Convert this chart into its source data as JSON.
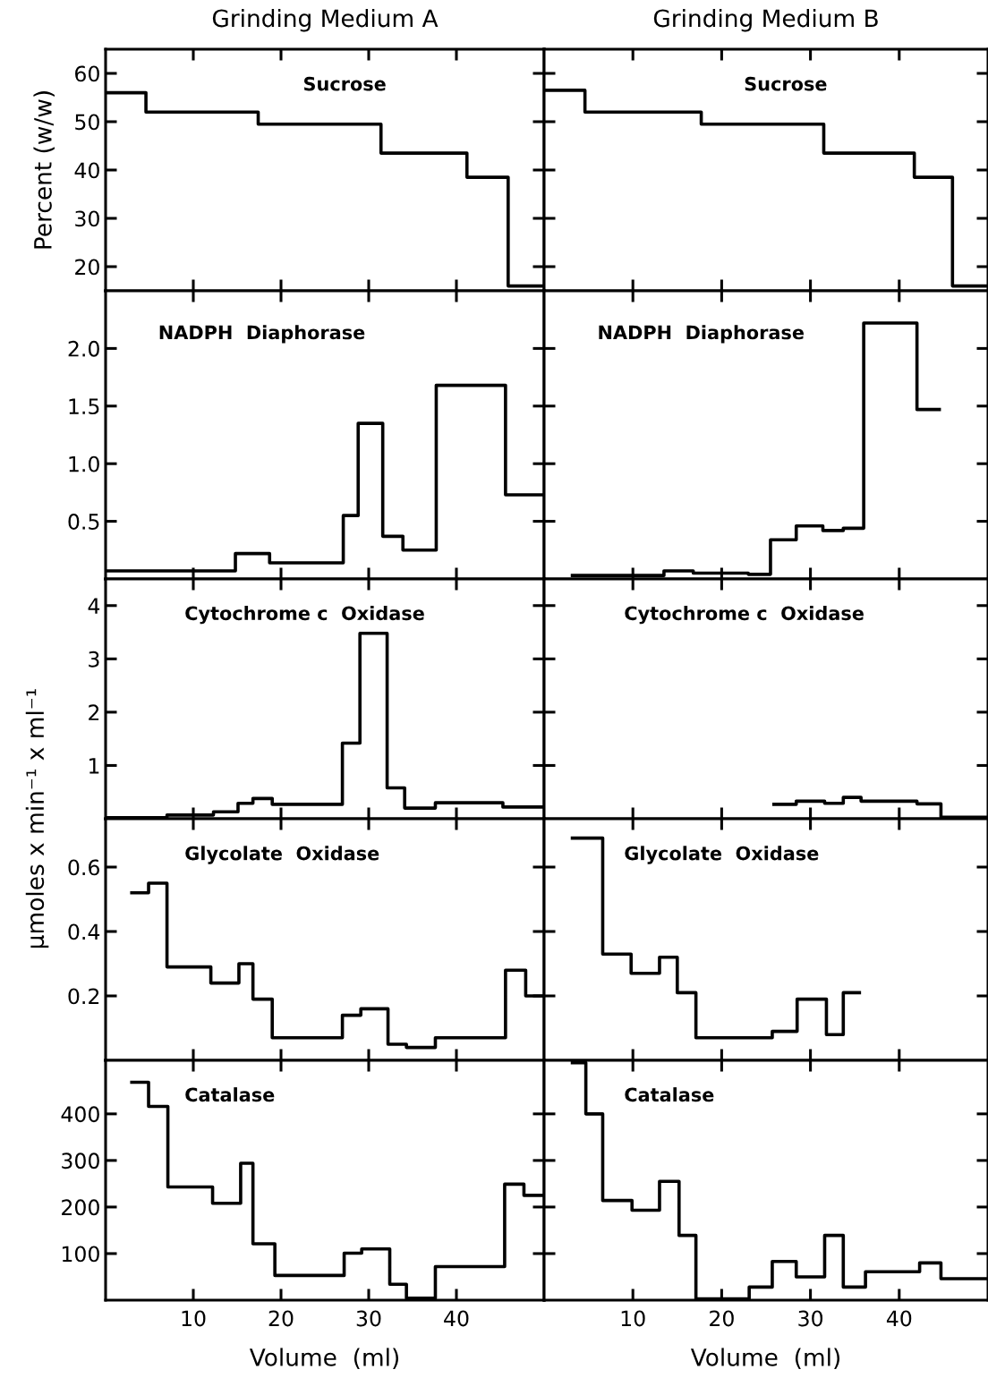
{
  "chart_data": [
    {
      "type": "histogram",
      "title": "Grinding Medium A",
      "ylabel": "Percent (w/w)",
      "annotations": [
        "Sucrose"
      ],
      "bins": [
        0,
        4.6,
        17.4,
        31.4,
        41.2,
        45.9,
        50
      ],
      "values": [
        56,
        52,
        49.5,
        43.5,
        38.5,
        16
      ],
      "xlim": [
        0,
        50
      ],
      "xticks": [
        10,
        20,
        30,
        40
      ],
      "ylim": [
        15,
        65
      ],
      "yticks": [
        20,
        30,
        40,
        50,
        60
      ],
      "tick_labels": "y"
    },
    {
      "type": "histogram",
      "title": "Grinding Medium B",
      "annotations": [
        "Sucrose"
      ],
      "bins": [
        0,
        4.6,
        17.7,
        31.5,
        41.7,
        46,
        50
      ],
      "values": [
        56.5,
        52,
        49.5,
        43.5,
        38.5,
        16
      ],
      "xlim": [
        0,
        50
      ],
      "xticks": [
        10,
        20,
        30,
        40
      ],
      "ylim": [
        15,
        65
      ],
      "yticks": [
        20,
        30,
        40,
        50,
        60
      ],
      "tick_labels": false
    },
    {
      "type": "histogram",
      "annotations": [
        "NADPH  Diaphorase"
      ],
      "bins": [
        0,
        14.8,
        18.7,
        27.1,
        28.8,
        31.6,
        33.9,
        37.7,
        45.6,
        50
      ],
      "values": [
        0.07,
        0.22,
        0.14,
        0.55,
        1.35,
        0.37,
        0.25,
        1.68,
        0.73
      ],
      "xlim": [
        0,
        50
      ],
      "xticks": [
        10,
        20,
        30,
        40
      ],
      "ylim": [
        0,
        2.5
      ],
      "yticks": [
        0.5,
        {
          "value": 1,
          "label": "1.0"
        },
        1.5,
        {
          "value": 2,
          "label": "2.0"
        }
      ],
      "tick_labels": "y"
    },
    {
      "type": "histogram",
      "annotations": [
        "NADPH  Diaphorase"
      ],
      "bins": [
        3,
        13.5,
        16.8,
        23,
        25.5,
        28.4,
        31.4,
        33.7,
        36,
        42,
        44.7
      ],
      "values": [
        0.03,
        0.07,
        0.05,
        0.04,
        0.34,
        0.46,
        0.42,
        0.44,
        2.22,
        1.47
      ],
      "xlim": [
        0,
        50
      ],
      "xticks": [
        10,
        20,
        30,
        40
      ],
      "ylim": [
        0,
        2.5
      ],
      "yticks": [
        0.5,
        1,
        1.5,
        2
      ],
      "tick_labels": false
    },
    {
      "type": "histogram",
      "ylabel": "μmoles x min⁻¹ x ml⁻¹",
      "annotations": [
        "Cytochrome c  Oxidase"
      ],
      "bins": [
        0,
        7,
        12.3,
        15.1,
        16.8,
        19,
        27,
        29,
        32.1,
        34.1,
        37.6,
        45.3,
        50
      ],
      "values": [
        0.02,
        0.07,
        0.13,
        0.29,
        0.38,
        0.27,
        1.42,
        3.48,
        0.58,
        0.2,
        0.3,
        0.22
      ],
      "xlim": [
        0,
        50
      ],
      "xticks": [
        10,
        20,
        30,
        40
      ],
      "ylim": [
        0,
        4.5
      ],
      "yticks": [
        1,
        2,
        3,
        4
      ],
      "tick_labels": "y"
    },
    {
      "type": "histogram",
      "annotations": [
        "Cytochrome c  Oxidase"
      ],
      "bins": [
        25.7,
        28.4,
        31.6,
        33.7,
        35.7,
        42,
        44.7,
        50
      ],
      "values": [
        0.27,
        0.33,
        0.29,
        0.4,
        0.33,
        0.28,
        0.03
      ],
      "xlim": [
        0,
        50
      ],
      "xticks": [
        10,
        20,
        30,
        40
      ],
      "ylim": [
        0,
        4.5
      ],
      "yticks": [
        1,
        2,
        3,
        4
      ],
      "tick_labels": false
    },
    {
      "type": "histogram",
      "annotations": [
        "Glycolate  Oxidase"
      ],
      "bins": [
        2.8,
        4.9,
        7,
        12,
        15.2,
        16.8,
        19,
        27,
        29.1,
        32.2,
        34.3,
        37.6,
        45.6,
        47.9,
        50
      ],
      "values": [
        0.52,
        0.55,
        0.29,
        0.24,
        0.3,
        0.19,
        0.07,
        0.14,
        0.16,
        0.05,
        0.04,
        0.07,
        0.28,
        0.2
      ],
      "xlim": [
        0,
        50
      ],
      "xticks": [
        10,
        20,
        30,
        40
      ],
      "ylim": [
        0,
        0.75
      ],
      "yticks": [
        0.2,
        0.4,
        0.6
      ],
      "tick_labels": "y"
    },
    {
      "type": "histogram",
      "annotations": [
        "Glycolate  Oxidase"
      ],
      "bins": [
        3,
        6.6,
        9.8,
        13,
        15,
        17.1,
        25.7,
        28.5,
        31.8,
        33.7,
        35.7
      ],
      "values": [
        0.69,
        0.33,
        0.27,
        0.32,
        0.21,
        0.07,
        0.09,
        0.19,
        0.08,
        0.21
      ],
      "xlim": [
        0,
        50
      ],
      "xticks": [
        10,
        20,
        30,
        40
      ],
      "ylim": [
        0,
        0.75
      ],
      "yticks": [
        0.2,
        0.4,
        0.6
      ],
      "tick_labels": false
    },
    {
      "type": "histogram",
      "xlabel": "Volume  (ml)",
      "annotations": [
        "Catalase"
      ],
      "bins": [
        2.8,
        4.9,
        7.1,
        12.2,
        15.4,
        16.8,
        19.3,
        27.2,
        29.2,
        32.4,
        34.3,
        37.6,
        45.5,
        47.7,
        50
      ],
      "values": [
        468,
        416,
        243,
        208,
        294,
        121,
        53,
        101,
        110,
        34,
        4,
        72,
        249,
        225
      ],
      "xlim": [
        0,
        50
      ],
      "xticks": [
        10,
        20,
        30,
        40
      ],
      "ylim": [
        0,
        515
      ],
      "yticks": [
        100,
        200,
        300,
        400
      ]
    },
    {
      "type": "histogram",
      "xlabel": "Volume  (ml)",
      "annotations": [
        "Catalase"
      ],
      "bins": [
        3,
        4.7,
        6.6,
        9.9,
        13,
        15.2,
        17.1,
        23.1,
        25.7,
        28.4,
        31.6,
        33.7,
        36.2,
        42.3,
        44.7,
        50
      ],
      "values": [
        510,
        400,
        214,
        193,
        255,
        139,
        3,
        28,
        83,
        50,
        139,
        28,
        61,
        80,
        46
      ],
      "xlim": [
        0,
        50
      ],
      "xticks": [
        10,
        20,
        30,
        40
      ],
      "ylim": [
        0,
        515
      ],
      "yticks": [
        100,
        200,
        300,
        400
      ],
      "tick_labels": "x"
    }
  ]
}
